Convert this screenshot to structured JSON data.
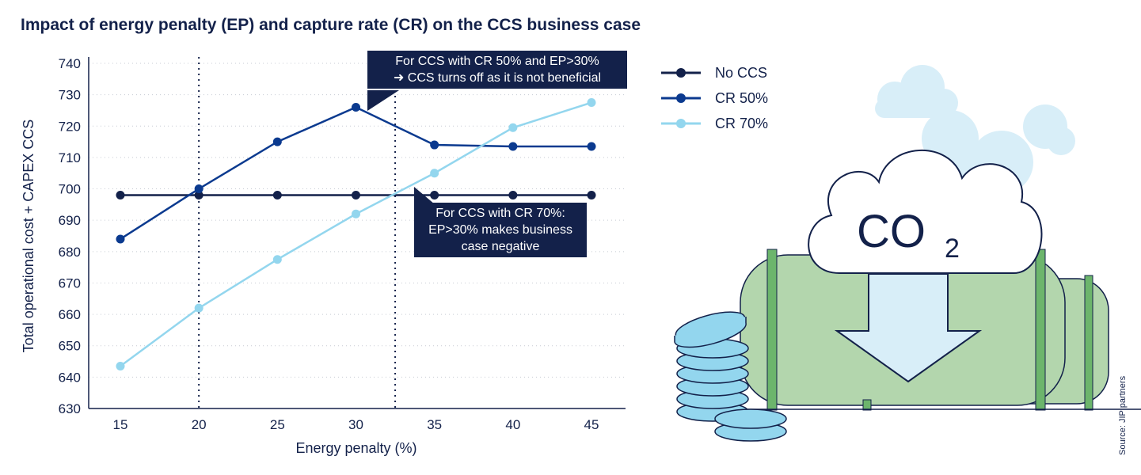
{
  "chart_data": {
    "type": "line",
    "title": "Impact of energy penalty (EP) and capture rate (CR) on the CCS business case",
    "xlabel": "Energy penalty (%)",
    "ylabel": "Total operational cost + CAPEX CCS",
    "x": [
      15,
      20,
      25,
      30,
      35,
      40,
      45
    ],
    "xticks": [
      "15",
      "20",
      "25",
      "30",
      "35",
      "40",
      "45"
    ],
    "yticks": [
      "630",
      "640",
      "650",
      "660",
      "670",
      "680",
      "690",
      "700",
      "710",
      "720",
      "730",
      "740"
    ],
    "ylim": [
      630,
      740
    ],
    "grid": "horizontal dotted",
    "reference_lines_x": [
      20,
      32.5
    ],
    "legend_position": "right",
    "series": [
      {
        "name": "No CCS",
        "color": "#13214a",
        "values": [
          698,
          698,
          698,
          698,
          698,
          698,
          698
        ]
      },
      {
        "name": "CR 50%",
        "color": "#0b3a8f",
        "values": [
          684,
          700,
          715,
          726,
          714,
          713.5,
          713.5
        ]
      },
      {
        "name": "CR 70%",
        "color": "#93d6ee",
        "values": [
          643.5,
          662,
          677.5,
          692,
          705,
          719.5,
          727.5
        ]
      }
    ],
    "annotations": [
      {
        "line1": "For CCS with CR 50% and EP>30%",
        "line2": "➜ CCS turns off as it is not beneficial"
      },
      {
        "line1": "For CCS with CR 70%:",
        "line2": "EP>30% makes business",
        "line3": "case negative"
      }
    ]
  },
  "illustration": {
    "cloud_label": "CO",
    "cloud_subscript": "2"
  },
  "source": "Source: JIP partners"
}
